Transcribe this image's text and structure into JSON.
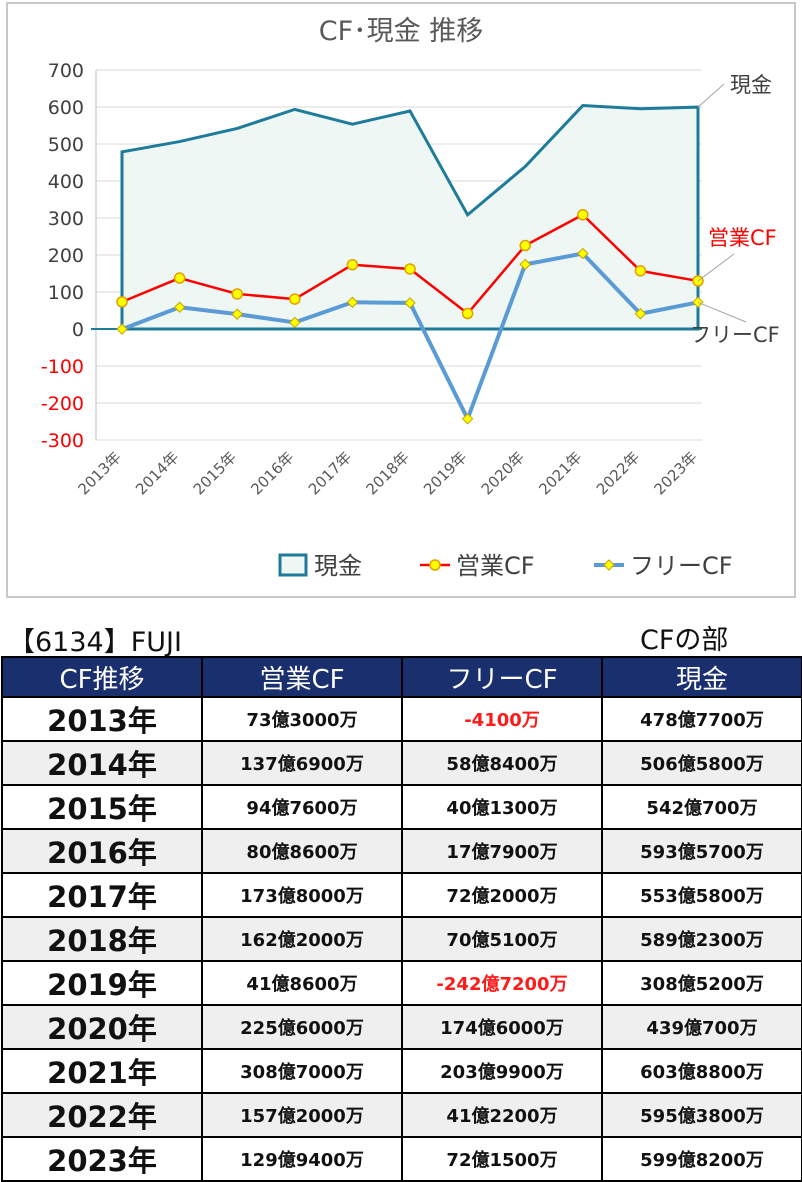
{
  "chart_data": {
    "type": "line",
    "title": "CF･現金 推移",
    "categories": [
      "2013年",
      "2014年",
      "2015年",
      "2016年",
      "2017年",
      "2018年",
      "2019年",
      "2020年",
      "2021年",
      "2022年",
      "2023年"
    ],
    "series": [
      {
        "name": "現金",
        "kind": "area",
        "color": "#1f7b9a",
        "values": [
          478.77,
          506.58,
          542.07,
          593.57,
          553.58,
          589.23,
          308.52,
          439.07,
          603.88,
          595.38,
          599.82
        ]
      },
      {
        "name": "営業CF",
        "kind": "line",
        "color": "#ff0000",
        "values": [
          73.3,
          137.69,
          94.76,
          80.86,
          173.8,
          162.2,
          41.86,
          225.6,
          308.7,
          157.2,
          129.94
        ]
      },
      {
        "name": "フリーCF",
        "kind": "line",
        "color": "#5b9bd5",
        "values": [
          -0.41,
          58.84,
          40.13,
          17.79,
          72.2,
          70.51,
          -242.72,
          174.6,
          203.99,
          41.22,
          72.15
        ]
      }
    ],
    "yticks": [
      "700",
      "600",
      "500",
      "400",
      "300",
      "200",
      "100",
      "0",
      "-100",
      "-200",
      "-300"
    ],
    "ylim": [
      -300,
      700
    ],
    "grid": true,
    "legend_position": "bottom",
    "end_labels": [
      "現金",
      "営業CF",
      "フリーCF"
    ]
  },
  "colors": {
    "header_bg": "#1a2f6e",
    "negative": "#ff1a1a",
    "area_fill": "#eef7f3",
    "marker_fill": "#ffff00"
  },
  "heading": {
    "company": "【6134】FUJI",
    "section": "CFの部"
  },
  "table": {
    "headers": [
      "CF推移",
      "営業CF",
      "フリーCF",
      "現金"
    ],
    "rows": [
      {
        "year": "2013年",
        "op": "73億3000万",
        "free": "-4100万",
        "cash": "478億7700万",
        "free_negative": true
      },
      {
        "year": "2014年",
        "op": "137億6900万",
        "free": "58億8400万",
        "cash": "506億5800万",
        "free_negative": false
      },
      {
        "year": "2015年",
        "op": "94億7600万",
        "free": "40億1300万",
        "cash": "542億700万",
        "free_negative": false
      },
      {
        "year": "2016年",
        "op": "80億8600万",
        "free": "17億7900万",
        "cash": "593億5700万",
        "free_negative": false
      },
      {
        "year": "2017年",
        "op": "173億8000万",
        "free": "72億2000万",
        "cash": "553億5800万",
        "free_negative": false
      },
      {
        "year": "2018年",
        "op": "162億2000万",
        "free": "70億5100万",
        "cash": "589億2300万",
        "free_negative": false
      },
      {
        "year": "2019年",
        "op": "41億8600万",
        "free": "-242億7200万",
        "cash": "308億5200万",
        "free_negative": true
      },
      {
        "year": "2020年",
        "op": "225億6000万",
        "free": "174億6000万",
        "cash": "439億700万",
        "free_negative": false
      },
      {
        "year": "2021年",
        "op": "308億7000万",
        "free": "203億9900万",
        "cash": "603億8800万",
        "free_negative": false
      },
      {
        "year": "2022年",
        "op": "157億2000万",
        "free": "41億2200万",
        "cash": "595億3800万",
        "free_negative": false
      },
      {
        "year": "2023年",
        "op": "129億9400万",
        "free": "72億1500万",
        "cash": "599億8200万",
        "free_negative": false
      }
    ]
  }
}
